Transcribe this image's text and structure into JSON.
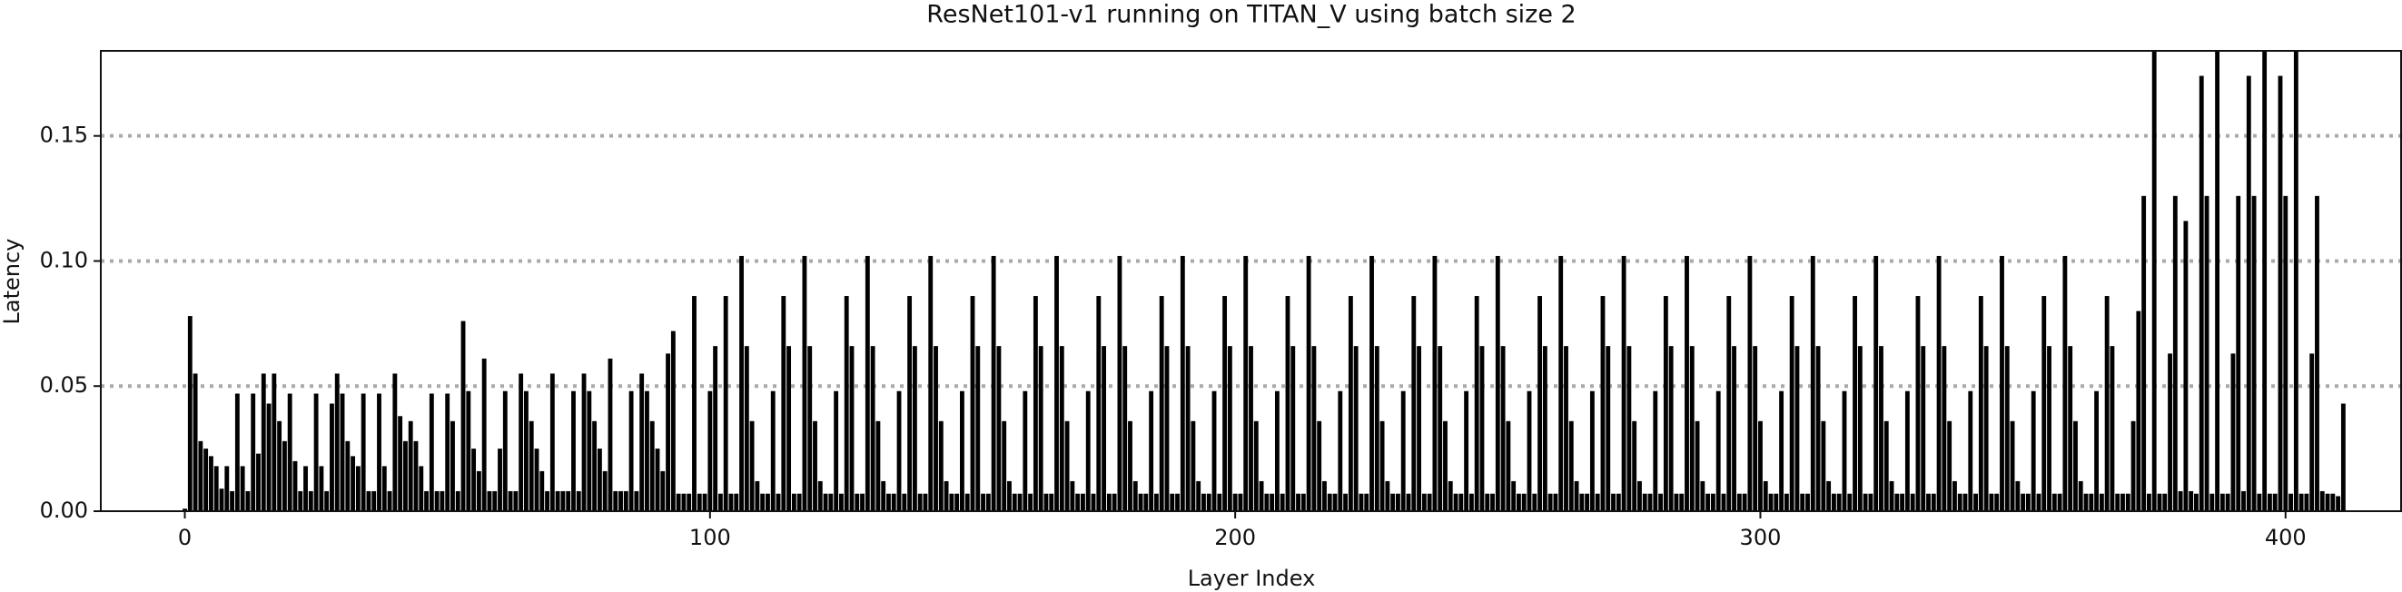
{
  "chart_data": {
    "type": "bar",
    "title": "ResNet101-v1 running on TITAN_V using batch size 2",
    "xlabel": "Layer Index",
    "ylabel": "Latency",
    "color": "#000000",
    "grid": true,
    "xlim": [
      -16,
      422
    ],
    "ylim": [
      0,
      0.184
    ],
    "xticks": [
      0,
      100,
      200,
      300,
      400
    ],
    "yticks": [
      {
        "value": 0,
        "label": "0.00"
      },
      0.05,
      {
        "value": 0.1,
        "label": "0.10"
      },
      0.15
    ],
    "x": [
      0,
      1,
      2,
      3,
      4,
      5,
      6,
      7,
      8,
      9,
      10,
      11,
      12,
      13,
      14,
      15,
      16,
      17,
      18,
      19,
      20,
      21,
      22,
      23,
      24,
      25,
      26,
      27,
      28,
      29,
      30,
      31,
      32,
      33,
      34,
      35,
      36,
      37,
      38,
      39,
      40,
      41,
      42,
      43,
      44,
      45,
      46,
      47,
      48,
      49,
      50,
      51,
      52,
      53,
      54,
      55,
      56,
      57,
      58,
      59,
      60,
      61,
      62,
      63,
      64,
      65,
      66,
      67,
      68,
      69,
      70,
      71,
      72,
      73,
      74,
      75,
      76,
      77,
      78,
      79,
      80,
      81,
      82,
      83,
      84,
      85,
      86,
      87,
      88,
      89,
      90,
      91,
      92,
      93,
      94,
      95,
      96,
      97,
      98,
      99,
      100,
      101,
      102,
      103,
      104,
      105,
      106,
      107,
      108,
      109,
      110,
      111,
      112,
      113,
      114,
      115,
      116,
      117,
      118,
      119,
      120,
      121,
      122,
      123,
      124,
      125,
      126,
      127,
      128,
      129,
      130,
      131,
      132,
      133,
      134,
      135,
      136,
      137,
      138,
      139,
      140,
      141,
      142,
      143,
      144,
      145,
      146,
      147,
      148,
      149,
      150,
      151,
      152,
      153,
      154,
      155,
      156,
      157,
      158,
      159,
      160,
      161,
      162,
      163,
      164,
      165,
      166,
      167,
      168,
      169,
      170,
      171,
      172,
      173,
      174,
      175,
      176,
      177,
      178,
      179,
      180,
      181,
      182,
      183,
      184,
      185,
      186,
      187,
      188,
      189,
      190,
      191,
      192,
      193,
      194,
      195,
      196,
      197,
      198,
      199,
      200,
      201,
      202,
      203,
      204,
      205,
      206,
      207,
      208,
      209,
      210,
      211,
      212,
      213,
      214,
      215,
      216,
      217,
      218,
      219,
      220,
      221,
      222,
      223,
      224,
      225,
      226,
      227,
      228,
      229,
      230,
      231,
      232,
      233,
      234,
      235,
      236,
      237,
      238,
      239,
      240,
      241,
      242,
      243,
      244,
      245,
      246,
      247,
      248,
      249,
      250,
      251,
      252,
      253,
      254,
      255,
      256,
      257,
      258,
      259,
      260,
      261,
      262,
      263,
      264,
      265,
      266,
      267,
      268,
      269,
      270,
      271,
      272,
      273,
      274,
      275,
      276,
      277,
      278,
      279,
      280,
      281,
      282,
      283,
      284,
      285,
      286,
      287,
      288,
      289,
      290,
      291,
      292,
      293,
      294,
      295,
      296,
      297,
      298,
      299,
      300,
      301,
      302,
      303,
      304,
      305,
      306,
      307,
      308,
      309,
      310,
      311,
      312,
      313,
      314,
      315,
      316,
      317,
      318,
      319,
      320,
      321,
      322,
      323,
      324,
      325,
      326,
      327,
      328,
      329,
      330,
      331,
      332,
      333,
      334,
      335,
      336,
      337,
      338,
      339,
      340,
      341,
      342,
      343,
      344,
      345,
      346,
      347,
      348,
      349,
      350,
      351,
      352,
      353,
      354,
      355,
      356,
      357,
      358,
      359,
      360,
      361,
      362,
      363,
      364,
      365,
      366,
      367,
      368,
      369,
      370,
      371,
      372,
      373,
      374,
      375,
      376,
      377,
      378,
      379,
      380,
      381,
      382,
      383,
      384,
      385,
      386,
      387,
      388,
      389,
      390,
      391,
      392,
      393,
      394,
      395,
      396,
      397,
      398,
      399,
      400,
      401,
      402,
      403,
      404,
      405,
      406,
      407,
      408,
      409,
      410,
      411
    ],
    "values": [
      0.001,
      0.078,
      0.055,
      0.028,
      0.025,
      0.022,
      0.018,
      0.009,
      0.018,
      0.008,
      0.047,
      0.018,
      0.008,
      0.047,
      0.023,
      0.055,
      0.043,
      0.055,
      0.036,
      0.028,
      0.047,
      0.02,
      0.008,
      0.018,
      0.008,
      0.047,
      0.018,
      0.008,
      0.043,
      0.055,
      0.047,
      0.028,
      0.022,
      0.018,
      0.047,
      0.008,
      0.008,
      0.047,
      0.018,
      0.008,
      0.055,
      0.038,
      0.028,
      0.036,
      0.028,
      0.018,
      0.008,
      0.047,
      0.008,
      0.008,
      0.047,
      0.036,
      0.008,
      0.076,
      0.048,
      0.025,
      0.016,
      0.061,
      0.008,
      0.008,
      0.025,
      0.048,
      0.008,
      0.008,
      0.055,
      0.048,
      0.036,
      0.025,
      0.016,
      0.008,
      0.055,
      0.008,
      0.008,
      0.008,
      0.048,
      0.008,
      0.055,
      0.048,
      0.036,
      0.025,
      0.016,
      0.061,
      0.008,
      0.008,
      0.008,
      0.048,
      0.008,
      0.055,
      0.048,
      0.036,
      0.025,
      0.016,
      0.063,
      0.072,
      0.007,
      0.007,
      0.007,
      0.086,
      0.007,
      0.007,
      0.048,
      0.066,
      0.007,
      0.086,
      0.007,
      0.007,
      0.102,
      0.066,
      0.036,
      0.012,
      0.007,
      0.007,
      0.048,
      0.007,
      0.086,
      0.066,
      0.007,
      0.007,
      0.102,
      0.066,
      0.036,
      0.012,
      0.007,
      0.007,
      0.048,
      0.007,
      0.086,
      0.066,
      0.007,
      0.007,
      0.102,
      0.066,
      0.036,
      0.012,
      0.007,
      0.007,
      0.048,
      0.007,
      0.086,
      0.066,
      0.007,
      0.007,
      0.102,
      0.066,
      0.036,
      0.012,
      0.007,
      0.007,
      0.048,
      0.007,
      0.086,
      0.066,
      0.007,
      0.007,
      0.102,
      0.066,
      0.036,
      0.012,
      0.007,
      0.007,
      0.048,
      0.007,
      0.086,
      0.066,
      0.007,
      0.007,
      0.102,
      0.066,
      0.036,
      0.012,
      0.007,
      0.007,
      0.048,
      0.007,
      0.086,
      0.066,
      0.007,
      0.007,
      0.102,
      0.066,
      0.036,
      0.012,
      0.007,
      0.007,
      0.048,
      0.007,
      0.086,
      0.066,
      0.007,
      0.007,
      0.102,
      0.066,
      0.036,
      0.012,
      0.007,
      0.007,
      0.048,
      0.007,
      0.086,
      0.066,
      0.007,
      0.007,
      0.102,
      0.066,
      0.036,
      0.012,
      0.007,
      0.007,
      0.048,
      0.007,
      0.086,
      0.066,
      0.007,
      0.007,
      0.102,
      0.066,
      0.036,
      0.012,
      0.007,
      0.007,
      0.048,
      0.007,
      0.086,
      0.066,
      0.007,
      0.007,
      0.102,
      0.066,
      0.036,
      0.012,
      0.007,
      0.007,
      0.048,
      0.007,
      0.086,
      0.066,
      0.007,
      0.007,
      0.102,
      0.066,
      0.036,
      0.012,
      0.007,
      0.007,
      0.048,
      0.007,
      0.086,
      0.066,
      0.007,
      0.007,
      0.102,
      0.066,
      0.036,
      0.012,
      0.007,
      0.007,
      0.048,
      0.007,
      0.086,
      0.066,
      0.007,
      0.007,
      0.102,
      0.066,
      0.036,
      0.012,
      0.007,
      0.007,
      0.048,
      0.007,
      0.086,
      0.066,
      0.007,
      0.007,
      0.102,
      0.066,
      0.036,
      0.012,
      0.007,
      0.007,
      0.048,
      0.007,
      0.086,
      0.066,
      0.007,
      0.007,
      0.102,
      0.066,
      0.036,
      0.012,
      0.007,
      0.007,
      0.048,
      0.007,
      0.086,
      0.066,
      0.007,
      0.007,
      0.102,
      0.066,
      0.036,
      0.012,
      0.007,
      0.007,
      0.048,
      0.007,
      0.086,
      0.066,
      0.007,
      0.007,
      0.102,
      0.066,
      0.036,
      0.012,
      0.007,
      0.007,
      0.048,
      0.007,
      0.086,
      0.066,
      0.007,
      0.007,
      0.102,
      0.066,
      0.036,
      0.012,
      0.007,
      0.007,
      0.048,
      0.007,
      0.086,
      0.066,
      0.007,
      0.007,
      0.102,
      0.066,
      0.036,
      0.012,
      0.007,
      0.007,
      0.048,
      0.007,
      0.086,
      0.066,
      0.007,
      0.007,
      0.102,
      0.066,
      0.036,
      0.012,
      0.007,
      0.007,
      0.048,
      0.007,
      0.086,
      0.066,
      0.007,
      0.007,
      0.102,
      0.066,
      0.036,
      0.012,
      0.007,
      0.007,
      0.048,
      0.007,
      0.086,
      0.066,
      0.007,
      0.007,
      0.007,
      0.036,
      0.08,
      0.126,
      0.007,
      0.184,
      0.007,
      0.007,
      0.063,
      0.126,
      0.008,
      0.116,
      0.008,
      0.007,
      0.174,
      0.126,
      0.007,
      0.184,
      0.007,
      0.007,
      0.063,
      0.126,
      0.008,
      0.174,
      0.126,
      0.007,
      0.184,
      0.007,
      0.007,
      0.174,
      0.126,
      0.007,
      0.184,
      0.007,
      0.007,
      0.063,
      0.126,
      0.008,
      0.007,
      0.007,
      0.006,
      0.043
    ]
  }
}
